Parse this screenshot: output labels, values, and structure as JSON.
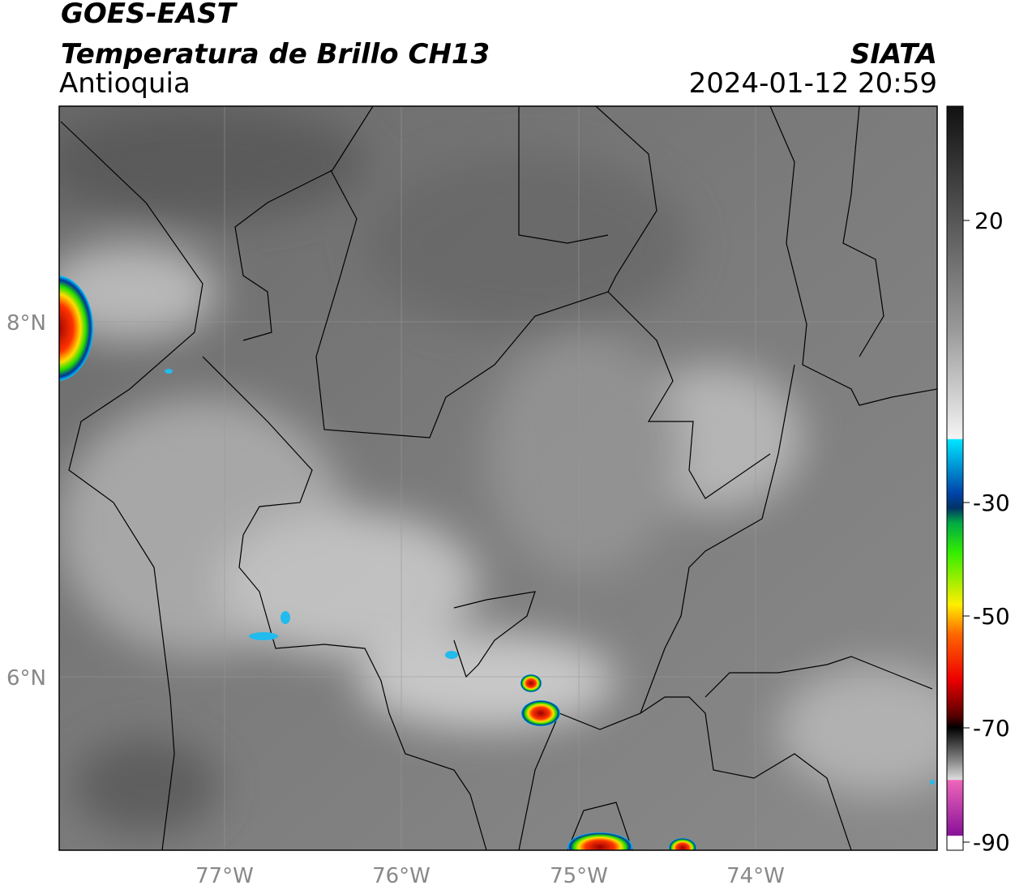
{
  "header": {
    "satellite": "GOES-EAST",
    "product": "Temperatura de Brillo CH13",
    "source": "SIATA",
    "region": "Antioquia",
    "datetime": "2024-01-12 20:59"
  },
  "map": {
    "lat_labels": [
      "8°N",
      "6°N"
    ],
    "lon_labels": [
      "77°W",
      "76°W",
      "75°W",
      "74°W"
    ]
  },
  "colorbar": {
    "labels": [
      "20",
      "-30",
      "-50",
      "-70",
      "-90"
    ]
  }
}
